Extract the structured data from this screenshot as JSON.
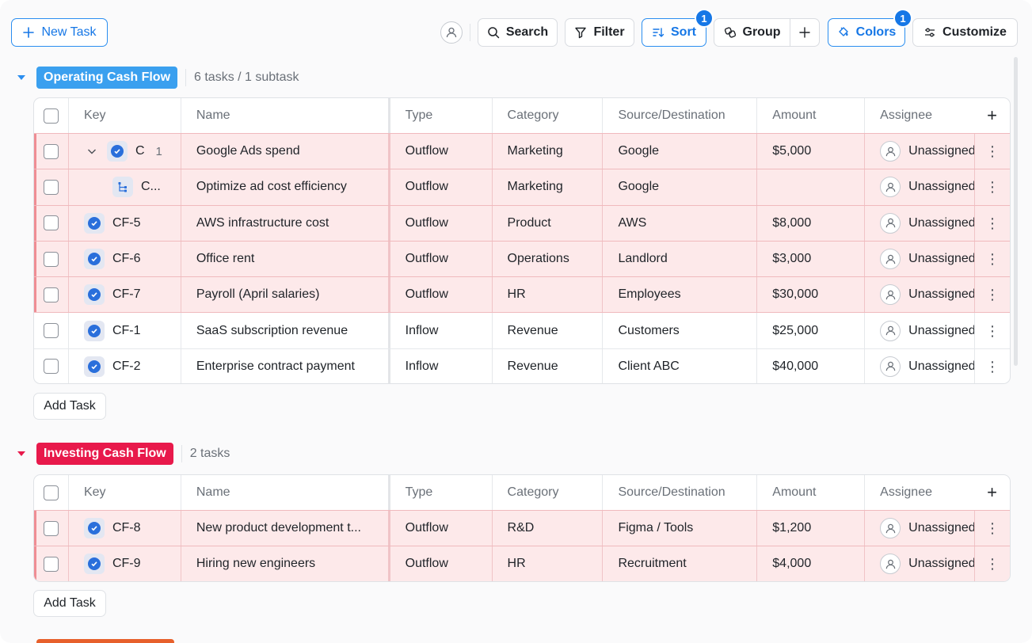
{
  "toolbar": {
    "new_task_label": "New Task",
    "search_label": "Search",
    "filter_label": "Filter",
    "sort_label": "Sort",
    "sort_badge": "1",
    "group_label": "Group",
    "colors_label": "Colors",
    "colors_badge": "1",
    "customize_label": "Customize"
  },
  "columns": [
    "Key",
    "Name",
    "Type",
    "Category",
    "Source/Destination",
    "Amount",
    "Assignee"
  ],
  "colors": {
    "accent": "#1677e6",
    "operating_group": "#3aa0ef",
    "investing_group": "#e8194b",
    "highlight_row": "#fde9ea"
  },
  "groups": [
    {
      "label": "Operating Cash Flow",
      "count": "6 tasks / 1 subtask",
      "add_task_label": "Add Task",
      "rows": [
        {
          "key": "C",
          "subtask_count": "1",
          "name": "Google Ads spend",
          "type": "Outflow",
          "category": "Marketing",
          "source": "Google",
          "amount": "$5,000",
          "assignee": "Unassigned",
          "highlighted": true,
          "expandable": true
        },
        {
          "key": "C...",
          "name": "Optimize ad cost efficiency",
          "type": "Outflow",
          "category": "Marketing",
          "source": "Google",
          "amount": "",
          "assignee": "Unassigned",
          "highlighted": true,
          "subtask": true
        },
        {
          "key": "CF-5",
          "name": "AWS infrastructure cost",
          "type": "Outflow",
          "category": "Product",
          "source": "AWS",
          "amount": "$8,000",
          "assignee": "Unassigned",
          "highlighted": true
        },
        {
          "key": "CF-6",
          "name": "Office rent",
          "type": "Outflow",
          "category": "Operations",
          "source": "Landlord",
          "amount": "$3,000",
          "assignee": "Unassigned",
          "highlighted": true
        },
        {
          "key": "CF-7",
          "name": "Payroll (April salaries)",
          "type": "Outflow",
          "category": "HR",
          "source": "Employees",
          "amount": "$30,000",
          "assignee": "Unassigned",
          "highlighted": true
        },
        {
          "key": "CF-1",
          "name": "SaaS subscription revenue",
          "type": "Inflow",
          "category": "Revenue",
          "source": "Customers",
          "amount": "$25,000",
          "assignee": "Unassigned",
          "highlighted": false
        },
        {
          "key": "CF-2",
          "name": "Enterprise contract payment",
          "type": "Inflow",
          "category": "Revenue",
          "source": "Client ABC",
          "amount": "$40,000",
          "assignee": "Unassigned",
          "highlighted": false
        }
      ]
    },
    {
      "label": "Investing Cash Flow",
      "count": "2 tasks",
      "add_task_label": "Add Task",
      "rows": [
        {
          "key": "CF-8",
          "name": "New product development t...",
          "type": "Outflow",
          "category": "R&D",
          "source": "Figma / Tools",
          "amount": "$1,200",
          "assignee": "Unassigned",
          "highlighted": true
        },
        {
          "key": "CF-9",
          "name": "Hiring new engineers",
          "type": "Outflow",
          "category": "HR",
          "source": "Recruitment",
          "amount": "$4,000",
          "assignee": "Unassigned",
          "highlighted": true
        }
      ]
    }
  ]
}
